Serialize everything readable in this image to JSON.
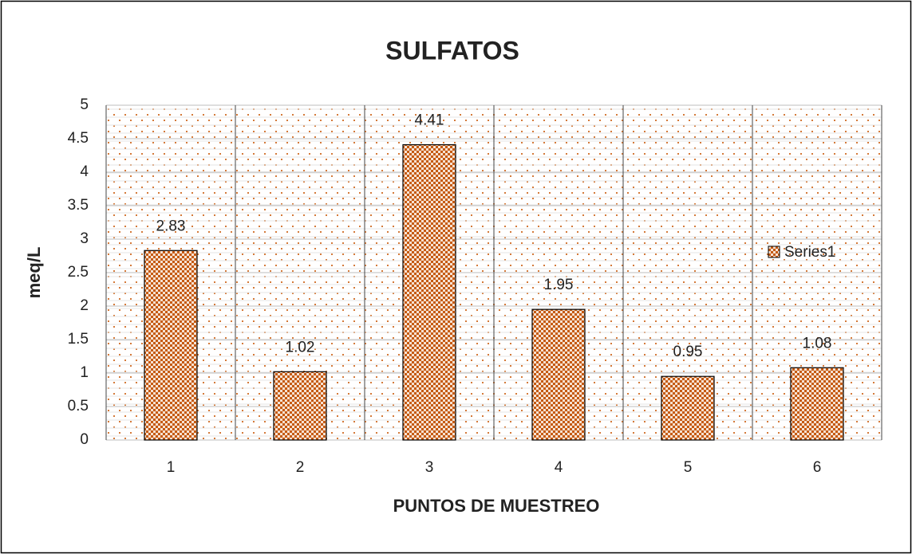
{
  "chart_data": {
    "type": "bar",
    "title": "SULFATOS",
    "x_label": "PUNTOS DE MUESTREO",
    "y_label": "meq/L",
    "categories": [
      "1",
      "2",
      "3",
      "4",
      "5",
      "6"
    ],
    "series": [
      {
        "name": "Series1",
        "color": "#c55a11",
        "values": [
          2.83,
          1.02,
          4.41,
          1.95,
          0.95,
          1.08
        ]
      }
    ],
    "ylim": [
      0,
      5
    ],
    "yticks": [
      0,
      0.5,
      1,
      1.5,
      2,
      2.5,
      3,
      3.5,
      4,
      4.5,
      5
    ],
    "grid": true,
    "legend": "right"
  }
}
